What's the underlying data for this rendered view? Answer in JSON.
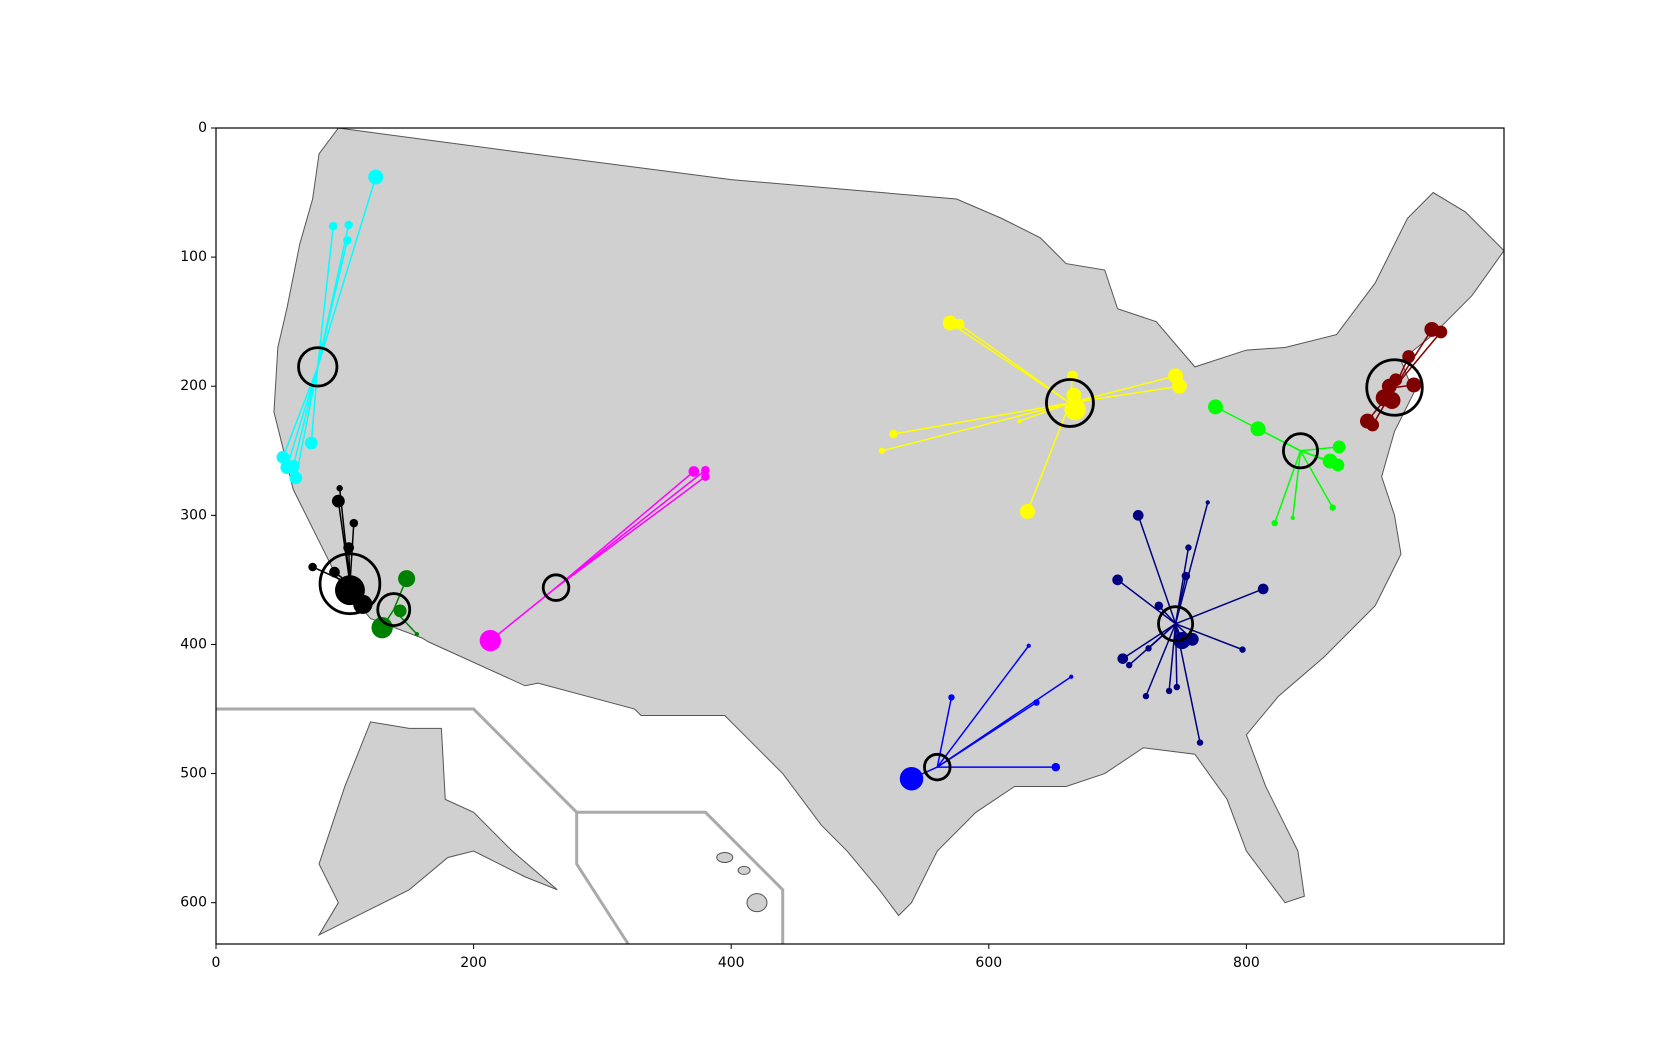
{
  "chart_data": {
    "type": "scatter",
    "xlim": [
      0,
      1000
    ],
    "ylim": [
      632,
      0
    ],
    "xticks": [
      0,
      200,
      400,
      600,
      800
    ],
    "yticks": [
      0,
      100,
      200,
      300,
      400,
      500,
      600
    ],
    "center_color": "#000000",
    "series": [
      {
        "color": "#00ffff",
        "center": {
          "x": 79,
          "y": 185,
          "size": 18
        },
        "x": [
          124,
          91,
          103,
          102,
          74,
          52,
          55,
          62,
          60
        ],
        "y": [
          38,
          76,
          75,
          87,
          244,
          255,
          263,
          271,
          262
        ],
        "sizes": [
          7,
          4,
          4,
          4,
          6,
          6,
          6,
          6,
          6
        ]
      },
      {
        "color": "#000000",
        "center": {
          "x": 104,
          "y": 353,
          "size": 28
        },
        "x": [
          95,
          96,
          107,
          103,
          75,
          92,
          104,
          114,
          106
        ],
        "y": [
          289,
          279,
          306,
          325,
          340,
          344,
          358,
          369,
          360
        ],
        "sizes": [
          6,
          3,
          4,
          5,
          4,
          5,
          14,
          9,
          10
        ]
      },
      {
        "color": "#008000",
        "center": {
          "x": 138,
          "y": 373,
          "size": 15
        },
        "x": [
          148,
          143,
          129,
          156
        ],
        "y": [
          349,
          374,
          387,
          392
        ],
        "sizes": [
          8,
          6,
          10,
          2
        ]
      },
      {
        "color": "#ff00ff",
        "center": {
          "x": 264,
          "y": 356,
          "size": 12
        },
        "x": [
          213,
          371,
          380,
          380
        ],
        "y": [
          397,
          266,
          265,
          270
        ],
        "sizes": [
          10,
          5,
          4,
          4
        ]
      },
      {
        "color": "#ffff00",
        "center": {
          "x": 663,
          "y": 213,
          "size": 22
        },
        "x": [
          570,
          577,
          526,
          517,
          630,
          665,
          666,
          667,
          745,
          748,
          624
        ],
        "y": [
          151,
          152,
          237,
          250,
          297,
          192,
          207,
          218,
          192,
          200,
          227
        ],
        "sizes": [
          7,
          5,
          4,
          3,
          7,
          5,
          7,
          10,
          7,
          7,
          2
        ]
      },
      {
        "color": "#00ff00",
        "center": {
          "x": 842,
          "y": 250,
          "size": 16
        },
        "x": [
          776,
          809,
          872,
          865,
          871,
          822,
          836,
          867
        ],
        "y": [
          216,
          233,
          247,
          258,
          261,
          306,
          302,
          294
        ],
        "sizes": [
          7,
          7,
          6,
          7,
          6,
          3,
          2,
          3
        ]
      },
      {
        "color": "#800000",
        "center": {
          "x": 915,
          "y": 201,
          "size": 26
        },
        "x": [
          944,
          951,
          926,
          930,
          911,
          907,
          913,
          894,
          898,
          916
        ],
        "y": [
          156,
          158,
          177,
          199,
          200,
          209,
          211,
          227,
          230,
          195
        ],
        "sizes": [
          7,
          6,
          6,
          7,
          7,
          8,
          8,
          7,
          6,
          6
        ]
      },
      {
        "color": "#000080",
        "center": {
          "x": 745,
          "y": 384,
          "size": 16
        },
        "x": [
          716,
          700,
          753,
          813,
          732,
          704,
          709,
          724,
          722,
          746,
          740,
          764,
          797,
          750,
          758,
          770,
          755
        ],
        "y": [
          300,
          350,
          347,
          357,
          370,
          411,
          416,
          403,
          440,
          433,
          436,
          476,
          404,
          397,
          396,
          290,
          325
        ],
        "sizes": [
          5,
          5,
          4,
          5,
          4,
          5,
          3,
          3,
          3,
          3,
          3,
          3,
          3,
          8,
          6,
          2,
          3
        ]
      },
      {
        "color": "#0000ff",
        "center": {
          "x": 560,
          "y": 495,
          "size": 12
        },
        "x": [
          540,
          571,
          631,
          664,
          637,
          652
        ],
        "y": [
          504,
          441,
          401,
          425,
          445,
          495
        ],
        "sizes": [
          11,
          3,
          2,
          2,
          3,
          4
        ]
      }
    ]
  }
}
